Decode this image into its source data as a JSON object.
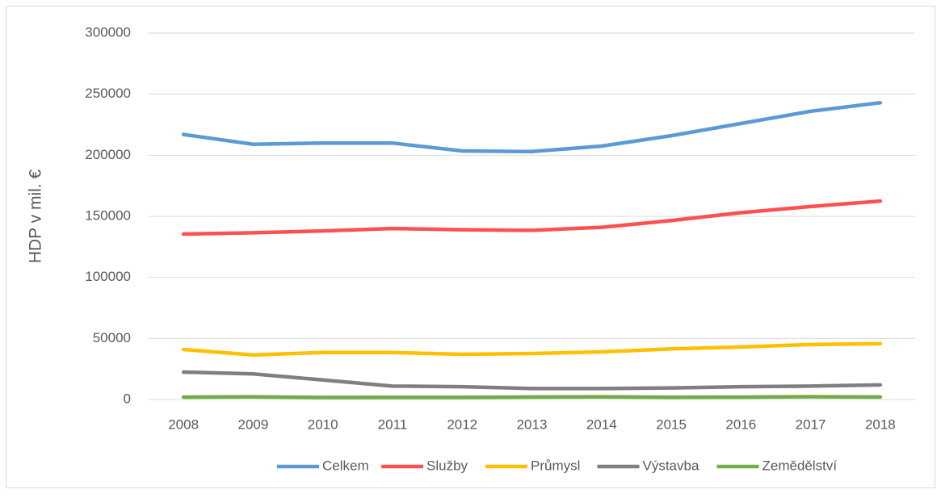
{
  "chart_data": {
    "type": "line",
    "y_label": "HDP v mil. €",
    "categories": [
      "2008",
      "2009",
      "2010",
      "2011",
      "2012",
      "2013",
      "2014",
      "2015",
      "2016",
      "2017",
      "2018"
    ],
    "series": [
      {
        "name": "Celkem",
        "color": "#5b9bd5",
        "values": [
          217000,
          209000,
          210000,
          210000,
          203500,
          203000,
          207500,
          216000,
          226000,
          236000,
          243000
        ]
      },
      {
        "name": "Služby",
        "color": "#ff5050",
        "values": [
          135500,
          136500,
          138000,
          140000,
          139000,
          138500,
          141000,
          146500,
          153000,
          158000,
          162500
        ]
      },
      {
        "name": "Průmysl",
        "color": "#ffc000",
        "values": [
          41000,
          36500,
          38500,
          38500,
          37000,
          37700,
          39000,
          41500,
          43000,
          45000,
          45800
        ]
      },
      {
        "name": "Výstavba",
        "color": "#7f7f7f",
        "values": [
          22500,
          21000,
          16000,
          11000,
          10500,
          9000,
          9000,
          9500,
          10500,
          11000,
          12000
        ]
      },
      {
        "name": "Zemědělství",
        "color": "#70ad47",
        "values": [
          2000,
          2200,
          1700,
          1800,
          1800,
          2100,
          2200,
          1900,
          2000,
          2300,
          2100
        ]
      }
    ],
    "ylim": [
      0,
      300000
    ],
    "yticks": [
      0,
      50000,
      100000,
      150000,
      200000,
      250000,
      300000
    ],
    "grid": true,
    "legend": "bottom"
  }
}
